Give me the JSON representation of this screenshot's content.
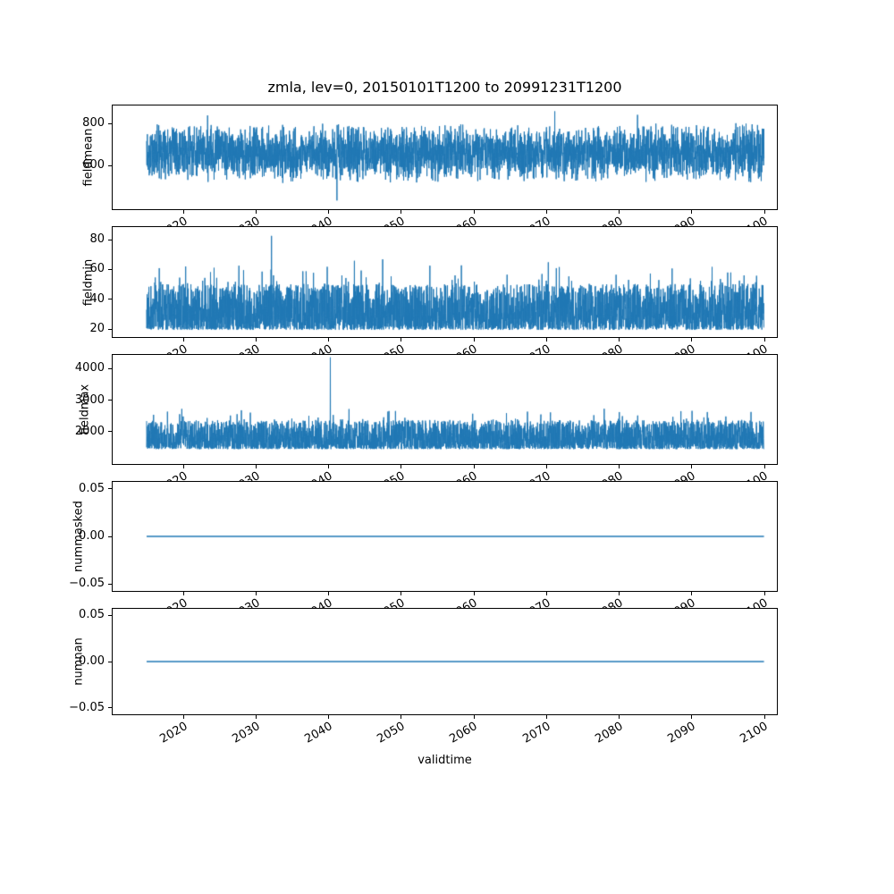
{
  "figure": {
    "title": "zmla, lev=0, 20150101T1200 to 20991231T1200",
    "xlabel": "validtime",
    "background": "#ffffff",
    "line_color": "#1f77b4",
    "axis_color": "#000000",
    "xlim": [
      2010.2,
      2101.9
    ],
    "xticks": [
      {
        "value": 2020,
        "label": "2020"
      },
      {
        "value": 2030,
        "label": "2030"
      },
      {
        "value": 2040,
        "label": "2040"
      },
      {
        "value": 2050,
        "label": "2050"
      },
      {
        "value": 2060,
        "label": "2060"
      },
      {
        "value": 2070,
        "label": "2070"
      },
      {
        "value": 2080,
        "label": "2080"
      },
      {
        "value": 2090,
        "label": "2090"
      },
      {
        "value": 2100,
        "label": "2100"
      }
    ]
  },
  "chart_data": [
    {
      "type": "line",
      "ylabel": "fieldmean",
      "ylim": [
        390,
        890
      ],
      "yticks": [
        {
          "value": 600,
          "label": "600"
        },
        {
          "value": 800,
          "label": "800"
        }
      ],
      "x_range": [
        2015.0,
        2100.0
      ],
      "series": {
        "name": "fieldmean",
        "model": "triangular",
        "points": 4000,
        "min": 515,
        "max": 808,
        "outliers": [
          {
            "x": 2041.2,
            "y": 432
          },
          {
            "x": 2023.4,
            "y": 842
          },
          {
            "x": 2071.2,
            "y": 862
          },
          {
            "x": 2082.6,
            "y": 845
          }
        ]
      }
    },
    {
      "type": "line",
      "ylabel": "fieldmin",
      "ylim": [
        14,
        89
      ],
      "yticks": [
        {
          "value": 20,
          "label": "20"
        },
        {
          "value": 40,
          "label": "40"
        },
        {
          "value": 60,
          "label": "60"
        },
        {
          "value": 80,
          "label": "80"
        }
      ],
      "x_range": [
        2015.0,
        2100.0
      ],
      "series": {
        "name": "fieldmin",
        "model": "lowheavy",
        "points": 4000,
        "min": 19,
        "max": 50,
        "spike_prob": 0.02,
        "spike_max": 63,
        "outliers": [
          {
            "x": 2032.2,
            "y": 83
          },
          {
            "x": 2043.6,
            "y": 66
          },
          {
            "x": 2047.5,
            "y": 67
          },
          {
            "x": 2070.3,
            "y": 65
          },
          {
            "x": 2095.0,
            "y": 58
          }
        ]
      }
    },
    {
      "type": "line",
      "ylabel": "fieldmax",
      "ylim": [
        950,
        4460
      ],
      "yticks": [
        {
          "value": 2000,
          "label": "2000"
        },
        {
          "value": 3000,
          "label": "3000"
        },
        {
          "value": 4000,
          "label": "4000"
        }
      ],
      "x_range": [
        2015.0,
        2100.0
      ],
      "series": {
        "name": "fieldmax",
        "model": "lowheavy",
        "points": 4000,
        "min": 1430,
        "max": 2350,
        "spike_prob": 0.02,
        "spike_max": 2750,
        "outliers": [
          {
            "x": 2040.3,
            "y": 4380
          },
          {
            "x": 2070.6,
            "y": 2610
          },
          {
            "x": 2090.1,
            "y": 2660
          }
        ]
      }
    },
    {
      "type": "line",
      "ylabel": "nummasked",
      "ylim": [
        -0.058,
        0.058
      ],
      "yticks": [
        {
          "value": -0.05,
          "label": "−0.05"
        },
        {
          "value": 0.0,
          "label": "0.00"
        },
        {
          "value": 0.05,
          "label": "0.05"
        }
      ],
      "x_range": [
        2015.0,
        2100.0
      ],
      "series": {
        "name": "nummasked",
        "model": "constant",
        "value": 0
      }
    },
    {
      "type": "line",
      "ylabel": "numnan",
      "ylim": [
        -0.058,
        0.058
      ],
      "yticks": [
        {
          "value": -0.05,
          "label": "−0.05"
        },
        {
          "value": 0.0,
          "label": "0.00"
        },
        {
          "value": 0.05,
          "label": "0.05"
        }
      ],
      "x_range": [
        2015.0,
        2100.0
      ],
      "series": {
        "name": "numnan",
        "model": "constant",
        "value": 0
      }
    }
  ]
}
